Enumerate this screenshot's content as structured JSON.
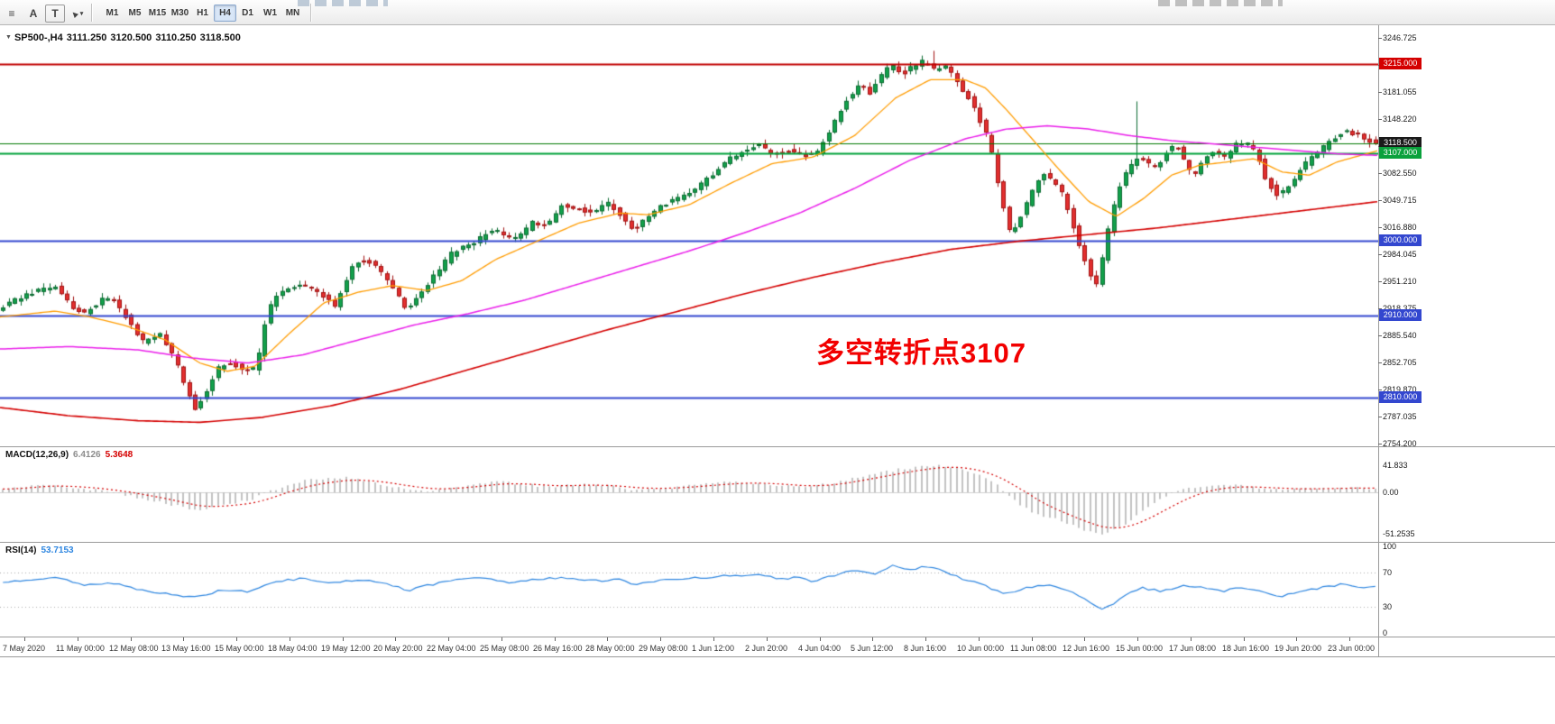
{
  "toolbar": {
    "tools": [
      {
        "name": "objects-list",
        "glyph": "≡"
      },
      {
        "name": "text-label",
        "glyph": "A"
      },
      {
        "name": "text-box",
        "glyph": "T"
      },
      {
        "name": "pointer",
        "glyph": "►",
        "dropdown": "▾"
      }
    ],
    "timeframes": [
      "M1",
      "M5",
      "M15",
      "M30",
      "H1",
      "H4",
      "D1",
      "W1",
      "MN"
    ],
    "active_timeframe": "H4"
  },
  "chart": {
    "symbol_period": "SP500-,H4",
    "open": "3111.250",
    "high": "3120.500",
    "low": "3110.250",
    "close": "3118.500",
    "annotation": {
      "text": "多空转折点3107",
      "color": "#f20000"
    },
    "price_axis": {
      "max": 3246.725,
      "step": 32.835,
      "count": 16
    },
    "levels": [
      {
        "price": 3215.0,
        "label": "3215.000",
        "line_color": "#c00000",
        "box_color": "#d40000",
        "line_width": 2
      },
      {
        "price": 3118.5,
        "label": "3118.500",
        "line_color": "#007a00",
        "box_color": "#1a1a1a",
        "line_width": 1
      },
      {
        "price": 3107.0,
        "label": "3107.000",
        "line_color": "#00a13a",
        "box_color": "#0aa13c",
        "line_width": 2
      },
      {
        "price": 3000.0,
        "label": "3000.000",
        "line_color": "#3347cf",
        "box_color": "#3347cf",
        "line_width": 2
      },
      {
        "price": 2910.0,
        "label": "2910.000",
        "line_color": "#3347cf",
        "box_color": "#3347cf",
        "line_width": 2
      },
      {
        "price": 2810.0,
        "label": "2810.000",
        "line_color": "#3347cf",
        "box_color": "#3347cf",
        "line_width": 2
      }
    ],
    "candles": {
      "count": 237,
      "up_fill": "#12a14b",
      "up_border": "#0b6b31",
      "down_fill": "#e32f2f",
      "down_border": "#a11212",
      "last_close": 3118.5,
      "path_anchors": [
        [
          0,
          2916
        ],
        [
          0.013,
          2928
        ],
        [
          0.03,
          2940
        ],
        [
          0.042,
          2946
        ],
        [
          0.055,
          2918
        ],
        [
          0.063,
          2912
        ],
        [
          0.075,
          2928
        ],
        [
          0.082,
          2932
        ],
        [
          0.095,
          2905
        ],
        [
          0.105,
          2878
        ],
        [
          0.118,
          2888
        ],
        [
          0.128,
          2860
        ],
        [
          0.138,
          2816
        ],
        [
          0.143,
          2796
        ],
        [
          0.15,
          2812
        ],
        [
          0.16,
          2846
        ],
        [
          0.17,
          2852
        ],
        [
          0.18,
          2843
        ],
        [
          0.188,
          2846
        ],
        [
          0.196,
          2915
        ],
        [
          0.205,
          2938
        ],
        [
          0.22,
          2948
        ],
        [
          0.232,
          2938
        ],
        [
          0.245,
          2922
        ],
        [
          0.258,
          2972
        ],
        [
          0.268,
          2978
        ],
        [
          0.277,
          2964
        ],
        [
          0.287,
          2944
        ],
        [
          0.296,
          2918
        ],
        [
          0.305,
          2932
        ],
        [
          0.318,
          2960
        ],
        [
          0.33,
          2986
        ],
        [
          0.345,
          2998
        ],
        [
          0.36,
          3014
        ],
        [
          0.368,
          3004
        ],
        [
          0.376,
          3002
        ],
        [
          0.388,
          3022
        ],
        [
          0.398,
          3018
        ],
        [
          0.41,
          3044
        ],
        [
          0.422,
          3040
        ],
        [
          0.432,
          3034
        ],
        [
          0.443,
          3046
        ],
        [
          0.452,
          3032
        ],
        [
          0.462,
          3014
        ],
        [
          0.472,
          3030
        ],
        [
          0.483,
          3044
        ],
        [
          0.495,
          3052
        ],
        [
          0.507,
          3064
        ],
        [
          0.518,
          3080
        ],
        [
          0.53,
          3098
        ],
        [
          0.542,
          3112
        ],
        [
          0.552,
          3116
        ],
        [
          0.562,
          3106
        ],
        [
          0.575,
          3110
        ],
        [
          0.585,
          3104
        ],
        [
          0.595,
          3108
        ],
        [
          0.605,
          3136
        ],
        [
          0.615,
          3170
        ],
        [
          0.625,
          3190
        ],
        [
          0.633,
          3180
        ],
        [
          0.641,
          3200
        ],
        [
          0.648,
          3214
        ],
        [
          0.656,
          3202
        ],
        [
          0.664,
          3212
        ],
        [
          0.672,
          3218
        ],
        [
          0.68,
          3208
        ],
        [
          0.688,
          3212
        ],
        [
          0.695,
          3196
        ],
        [
          0.703,
          3178
        ],
        [
          0.712,
          3150
        ],
        [
          0.72,
          3120
        ],
        [
          0.728,
          3054
        ],
        [
          0.735,
          3006
        ],
        [
          0.742,
          3028
        ],
        [
          0.75,
          3056
        ],
        [
          0.758,
          3082
        ],
        [
          0.765,
          3074
        ],
        [
          0.772,
          3060
        ],
        [
          0.779,
          3024
        ],
        [
          0.786,
          2990
        ],
        [
          0.793,
          2960
        ],
        [
          0.798,
          2948
        ],
        [
          0.803,
          2988
        ],
        [
          0.808,
          3030
        ],
        [
          0.814,
          3066
        ],
        [
          0.82,
          3086
        ],
        [
          0.827,
          3102
        ],
        [
          0.834,
          3094
        ],
        [
          0.841,
          3088
        ],
        [
          0.848,
          3108
        ],
        [
          0.855,
          3116
        ],
        [
          0.862,
          3096
        ],
        [
          0.868,
          3076
        ],
        [
          0.875,
          3100
        ],
        [
          0.882,
          3110
        ],
        [
          0.89,
          3102
        ],
        [
          0.898,
          3116
        ],
        [
          0.906,
          3120
        ],
        [
          0.914,
          3106
        ],
        [
          0.921,
          3072
        ],
        [
          0.929,
          3056
        ],
        [
          0.937,
          3068
        ],
        [
          0.945,
          3086
        ],
        [
          0.953,
          3100
        ],
        [
          0.961,
          3112
        ],
        [
          0.969,
          3124
        ],
        [
          0.977,
          3134
        ],
        [
          0.985,
          3130
        ],
        [
          0.992,
          3124
        ],
        [
          1,
          3119
        ]
      ]
    },
    "moving_averages": [
      {
        "name": "fast-ma-orange",
        "color": "#ff9c00",
        "width": 1.3,
        "points": [
          [
            0,
            2908
          ],
          [
            0.04,
            2915
          ],
          [
            0.065,
            2908
          ],
          [
            0.09,
            2898
          ],
          [
            0.12,
            2880
          ],
          [
            0.145,
            2852
          ],
          [
            0.165,
            2842
          ],
          [
            0.185,
            2848
          ],
          [
            0.21,
            2888
          ],
          [
            0.235,
            2925
          ],
          [
            0.26,
            2938
          ],
          [
            0.285,
            2946
          ],
          [
            0.31,
            2940
          ],
          [
            0.335,
            2952
          ],
          [
            0.36,
            2978
          ],
          [
            0.39,
            3000
          ],
          [
            0.42,
            3022
          ],
          [
            0.45,
            3034
          ],
          [
            0.47,
            3032
          ],
          [
            0.5,
            3044
          ],
          [
            0.53,
            3070
          ],
          [
            0.56,
            3094
          ],
          [
            0.59,
            3102
          ],
          [
            0.62,
            3128
          ],
          [
            0.65,
            3174
          ],
          [
            0.675,
            3196
          ],
          [
            0.7,
            3196
          ],
          [
            0.715,
            3186
          ],
          [
            0.73,
            3160
          ],
          [
            0.75,
            3122
          ],
          [
            0.77,
            3084
          ],
          [
            0.79,
            3048
          ],
          [
            0.81,
            3030
          ],
          [
            0.83,
            3052
          ],
          [
            0.85,
            3080
          ],
          [
            0.87,
            3092
          ],
          [
            0.89,
            3096
          ],
          [
            0.91,
            3100
          ],
          [
            0.93,
            3084
          ],
          [
            0.95,
            3080
          ],
          [
            0.97,
            3096
          ],
          [
            1,
            3110
          ]
        ]
      },
      {
        "name": "mid-ma-magenta",
        "color": "#ea1fea",
        "width": 1.5,
        "points": [
          [
            0,
            2869
          ],
          [
            0.05,
            2872
          ],
          [
            0.1,
            2868
          ],
          [
            0.14,
            2858
          ],
          [
            0.18,
            2852
          ],
          [
            0.22,
            2862
          ],
          [
            0.26,
            2880
          ],
          [
            0.3,
            2898
          ],
          [
            0.34,
            2912
          ],
          [
            0.38,
            2928
          ],
          [
            0.42,
            2948
          ],
          [
            0.46,
            2968
          ],
          [
            0.5,
            2988
          ],
          [
            0.54,
            3010
          ],
          [
            0.58,
            3034
          ],
          [
            0.62,
            3064
          ],
          [
            0.66,
            3098
          ],
          [
            0.7,
            3124
          ],
          [
            0.73,
            3136
          ],
          [
            0.76,
            3140
          ],
          [
            0.79,
            3136
          ],
          [
            0.82,
            3128
          ],
          [
            0.85,
            3122
          ],
          [
            0.88,
            3118
          ],
          [
            0.91,
            3114
          ],
          [
            0.94,
            3110
          ],
          [
            0.97,
            3106
          ],
          [
            1,
            3104
          ]
        ]
      },
      {
        "name": "slow-ma-red",
        "color": "#d40000",
        "width": 1.6,
        "points": [
          [
            0,
            2798
          ],
          [
            0.05,
            2788
          ],
          [
            0.1,
            2782
          ],
          [
            0.145,
            2780
          ],
          [
            0.19,
            2786
          ],
          [
            0.24,
            2800
          ],
          [
            0.29,
            2820
          ],
          [
            0.34,
            2844
          ],
          [
            0.39,
            2868
          ],
          [
            0.44,
            2892
          ],
          [
            0.49,
            2914
          ],
          [
            0.54,
            2936
          ],
          [
            0.59,
            2956
          ],
          [
            0.64,
            2974
          ],
          [
            0.69,
            2990
          ],
          [
            0.74,
            3000
          ],
          [
            0.79,
            3008
          ],
          [
            0.84,
            3016
          ],
          [
            0.89,
            3026
          ],
          [
            0.94,
            3036
          ],
          [
            1,
            3048
          ]
        ]
      }
    ]
  },
  "macd": {
    "label": "MACD(12,26,9)",
    "main_value": "6.4126",
    "signal_value": "5.3648",
    "axis_labels": [
      "41.833",
      "0.00",
      "-51.2535"
    ],
    "axis_values": [
      41.833,
      0,
      -51.2535
    ],
    "histogram_color": "#c2c2c2",
    "signal_color": "#d40000",
    "anchors": [
      [
        0,
        5
      ],
      [
        0.03,
        12
      ],
      [
        0.05,
        8
      ],
      [
        0.07,
        3
      ],
      [
        0.09,
        -4
      ],
      [
        0.11,
        -10
      ],
      [
        0.14,
        -22
      ],
      [
        0.16,
        -16
      ],
      [
        0.18,
        -10
      ],
      [
        0.2,
        5
      ],
      [
        0.22,
        18
      ],
      [
        0.25,
        22
      ],
      [
        0.27,
        15
      ],
      [
        0.29,
        6
      ],
      [
        0.31,
        2
      ],
      [
        0.33,
        8
      ],
      [
        0.36,
        16
      ],
      [
        0.38,
        12
      ],
      [
        0.4,
        8
      ],
      [
        0.42,
        12
      ],
      [
        0.44,
        10
      ],
      [
        0.46,
        4
      ],
      [
        0.48,
        6
      ],
      [
        0.5,
        10
      ],
      [
        0.52,
        14
      ],
      [
        0.54,
        16
      ],
      [
        0.56,
        12
      ],
      [
        0.58,
        8
      ],
      [
        0.6,
        12
      ],
      [
        0.62,
        22
      ],
      [
        0.64,
        30
      ],
      [
        0.655,
        36
      ],
      [
        0.67,
        40
      ],
      [
        0.682,
        41.8
      ],
      [
        0.695,
        38
      ],
      [
        0.71,
        28
      ],
      [
        0.725,
        10
      ],
      [
        0.74,
        -15
      ],
      [
        0.755,
        -28
      ],
      [
        0.77,
        -35
      ],
      [
        0.785,
        -45
      ],
      [
        0.8,
        -51.25
      ],
      [
        0.815,
        -42
      ],
      [
        0.83,
        -25
      ],
      [
        0.845,
        -8
      ],
      [
        0.86,
        4
      ],
      [
        0.875,
        10
      ],
      [
        0.89,
        12
      ],
      [
        0.9,
        10
      ],
      [
        0.92,
        6
      ],
      [
        0.94,
        4
      ],
      [
        0.96,
        6
      ],
      [
        0.98,
        7
      ],
      [
        1,
        6.41
      ]
    ]
  },
  "rsi": {
    "label": "RSI(14)",
    "value": "53.7153",
    "axis_labels": [
      "100",
      "70",
      "30",
      "0"
    ],
    "axis_values": [
      100,
      70,
      30,
      0
    ],
    "levels": [
      70,
      30
    ],
    "line_color": "#2e86e0",
    "anchors": [
      [
        0,
        58
      ],
      [
        0.02,
        62
      ],
      [
        0.04,
        64
      ],
      [
        0.06,
        55
      ],
      [
        0.08,
        58
      ],
      [
        0.1,
        50
      ],
      [
        0.12,
        45
      ],
      [
        0.14,
        41
      ],
      [
        0.16,
        50
      ],
      [
        0.18,
        48
      ],
      [
        0.2,
        60
      ],
      [
        0.22,
        63
      ],
      [
        0.24,
        58
      ],
      [
        0.26,
        62
      ],
      [
        0.28,
        57
      ],
      [
        0.295,
        49
      ],
      [
        0.31,
        55
      ],
      [
        0.33,
        62
      ],
      [
        0.35,
        64
      ],
      [
        0.37,
        58
      ],
      [
        0.39,
        62
      ],
      [
        0.41,
        64
      ],
      [
        0.43,
        60
      ],
      [
        0.45,
        62
      ],
      [
        0.46,
        56
      ],
      [
        0.475,
        60
      ],
      [
        0.49,
        62
      ],
      [
        0.51,
        64
      ],
      [
        0.53,
        66
      ],
      [
        0.55,
        68
      ],
      [
        0.565,
        62
      ],
      [
        0.58,
        64
      ],
      [
        0.59,
        60
      ],
      [
        0.605,
        66
      ],
      [
        0.62,
        72
      ],
      [
        0.635,
        68
      ],
      [
        0.648,
        78
      ],
      [
        0.66,
        73
      ],
      [
        0.672,
        77
      ],
      [
        0.685,
        72
      ],
      [
        0.7,
        62
      ],
      [
        0.715,
        55
      ],
      [
        0.73,
        45
      ],
      [
        0.745,
        52
      ],
      [
        0.76,
        56
      ],
      [
        0.775,
        50
      ],
      [
        0.79,
        38
      ],
      [
        0.8,
        27
      ],
      [
        0.81,
        35
      ],
      [
        0.82,
        45
      ],
      [
        0.83,
        52
      ],
      [
        0.845,
        48
      ],
      [
        0.86,
        54
      ],
      [
        0.875,
        52
      ],
      [
        0.89,
        48
      ],
      [
        0.9,
        53
      ],
      [
        0.915,
        50
      ],
      [
        0.93,
        42
      ],
      [
        0.945,
        48
      ],
      [
        0.96,
        52
      ],
      [
        0.975,
        56
      ],
      [
        0.99,
        53
      ],
      [
        1,
        53.7
      ]
    ]
  },
  "time_axis": {
    "labels": [
      "7 May 2020",
      "11 May 00:00",
      "12 May 08:00",
      "13 May 16:00",
      "15 May 00:00",
      "18 May 04:00",
      "19 May 12:00",
      "20 May 20:00",
      "22 May 04:00",
      "25 May 08:00",
      "26 May 16:00",
      "28 May 00:00",
      "29 May 08:00",
      "1 Jun 12:00",
      "2 Jun 20:00",
      "4 Jun 04:00",
      "5 Jun 12:00",
      "8 Jun 16:00",
      "10 Jun 00:00",
      "11 Jun 08:00",
      "12 Jun 16:00",
      "15 Jun 00:00",
      "17 Jun 08:00",
      "18 Jun 16:00",
      "19 Jun 20:00",
      "23 Jun 00:00"
    ]
  }
}
